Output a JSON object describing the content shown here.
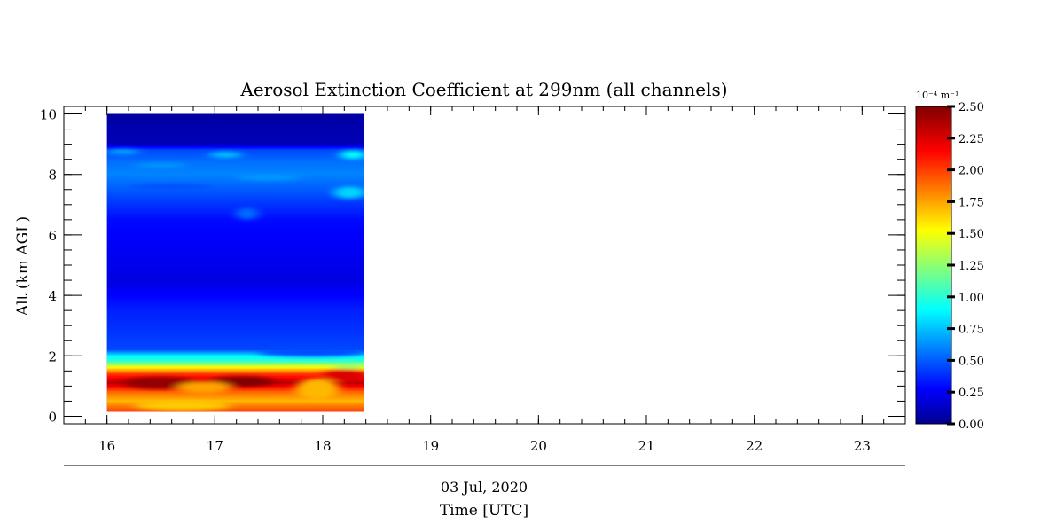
{
  "chart_data": {
    "type": "heatmap",
    "title": "Aerosol Extinction Coefficient at 299nm (all channels)",
    "ylabel": "Alt (km AGL)",
    "xlabel": "Time [UTC]",
    "date_label": "03 Jul, 2020",
    "xlim": [
      15.6,
      23.4
    ],
    "ylim": [
      -0.25,
      10.25
    ],
    "x_ticks": [
      16,
      17,
      18,
      19,
      20,
      21,
      22,
      23
    ],
    "y_ticks": [
      0,
      2,
      4,
      6,
      8,
      10
    ],
    "data_x_range": [
      16.0,
      18.38
    ],
    "data_y_range": [
      0.15,
      10.0
    ],
    "colorbar": {
      "unit_label": "10⁻⁴ m⁻¹",
      "range": [
        0.0,
        2.5
      ],
      "ticks": [
        "0.00",
        "0.25",
        "0.50",
        "0.75",
        "1.00",
        "1.25",
        "1.50",
        "1.75",
        "2.00",
        "2.25",
        "2.50"
      ],
      "colormap": "jet"
    },
    "profile": [
      {
        "alt": 0.15,
        "value": 2.0
      },
      {
        "alt": 0.5,
        "value": 1.7
      },
      {
        "alt": 0.8,
        "value": 1.9
      },
      {
        "alt": 1.1,
        "value": 2.35
      },
      {
        "alt": 1.4,
        "value": 2.0
      },
      {
        "alt": 1.6,
        "value": 1.55
      },
      {
        "alt": 1.8,
        "value": 1.05
      },
      {
        "alt": 2.0,
        "value": 0.85
      },
      {
        "alt": 2.2,
        "value": 0.45
      },
      {
        "alt": 2.8,
        "value": 0.4
      },
      {
        "alt": 3.5,
        "value": 0.35
      },
      {
        "alt": 4.5,
        "value": 0.2
      },
      {
        "alt": 5.5,
        "value": 0.25
      },
      {
        "alt": 6.5,
        "value": 0.3
      },
      {
        "alt": 7.0,
        "value": 0.4
      },
      {
        "alt": 7.5,
        "value": 0.5
      },
      {
        "alt": 8.0,
        "value": 0.6
      },
      {
        "alt": 8.4,
        "value": 0.55
      },
      {
        "alt": 8.8,
        "value": 0.45
      },
      {
        "alt": 9.0,
        "value": 0.1
      },
      {
        "alt": 10.0,
        "value": 0.05
      }
    ]
  }
}
